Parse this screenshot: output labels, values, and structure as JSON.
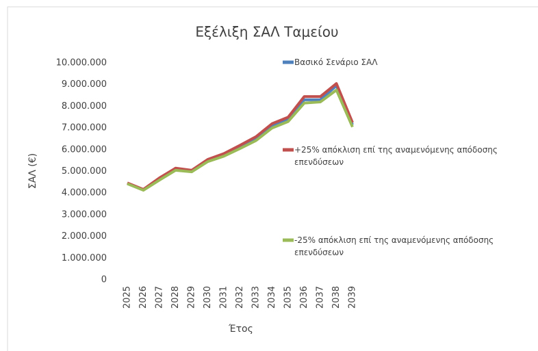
{
  "chart_data": {
    "type": "line",
    "title": "Εξέλιξη ΣΑΛ Ταμείου",
    "x_label": "Έτος",
    "y_label": "ΣΑΛ (€)",
    "categories": [
      "2025",
      "2026",
      "2027",
      "2028",
      "2029",
      "2030",
      "2031",
      "2032",
      "2033",
      "2034",
      "2035",
      "2036",
      "2037",
      "2038",
      "2039"
    ],
    "series": [
      {
        "name": "Βασικό Σενάριο ΣΑΛ",
        "color": "#4f81bd",
        "values": [
          4450000,
          4150000,
          4650000,
          5100000,
          5000000,
          5500000,
          5750000,
          6100000,
          6500000,
          7100000,
          7400000,
          8300000,
          8300000,
          8950000,
          7150000
        ]
      },
      {
        "name": "+25% απόκλιση επί της αναμενόμενης απόδοσης επενδύσεων",
        "color": "#c0504d",
        "values": [
          4470000,
          4170000,
          4700000,
          5150000,
          5050000,
          5550000,
          5820000,
          6200000,
          6600000,
          7200000,
          7500000,
          8450000,
          8450000,
          9050000,
          7250000
        ]
      },
      {
        "name": "-25% απόκλιση επί της αναμενόμενης απόδοσης επενδύσεων",
        "color": "#9bbb59",
        "values": [
          4430000,
          4130000,
          4600000,
          5050000,
          4980000,
          5450000,
          5700000,
          6050000,
          6420000,
          7000000,
          7300000,
          8150000,
          8200000,
          8750000,
          7050000
        ]
      }
    ],
    "ylim": [
      0,
      10000000
    ],
    "yticks": [
      0,
      {
        "value": 1000000,
        "label": "1.000.000"
      },
      {
        "value": 2000000,
        "label": "2.000.000"
      },
      {
        "value": 3000000,
        "label": "3.000.000"
      },
      {
        "value": 4000000,
        "label": "4.000.000"
      },
      {
        "value": 5000000,
        "label": "5.000.000"
      },
      {
        "value": 6000000,
        "label": "6.000.000"
      },
      {
        "value": 7000000,
        "label": "7.000.000"
      },
      {
        "value": 8000000,
        "label": "8.000.000"
      },
      {
        "value": 9000000,
        "label": "9.000.000"
      },
      {
        "value": 10000000,
        "label": "10.000.000"
      }
    ],
    "grid": false
  }
}
